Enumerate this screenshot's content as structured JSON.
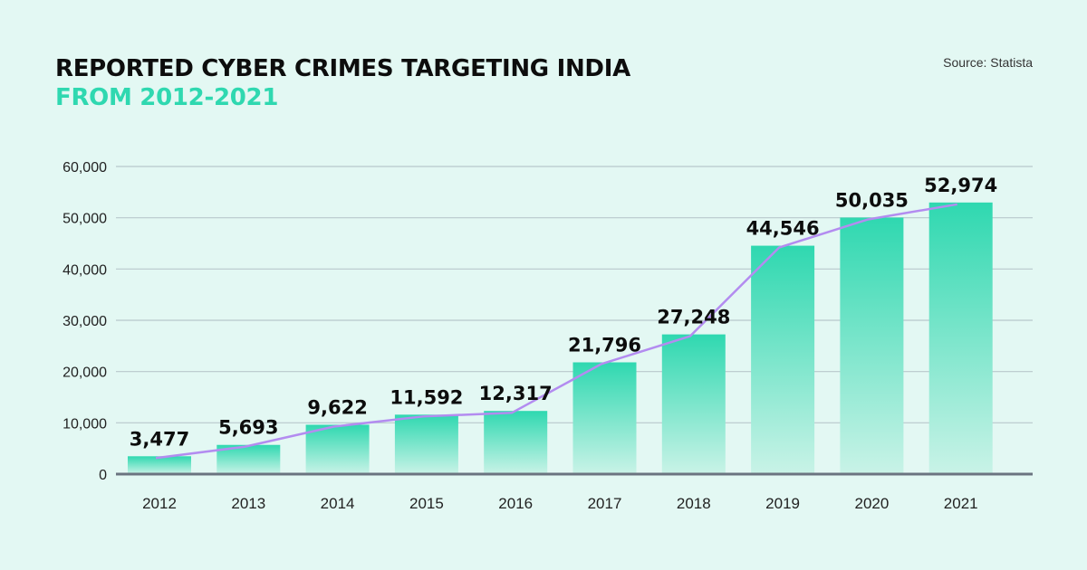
{
  "header": {
    "title_line1": "REPORTED CYBER CRIMES TARGETING INDIA",
    "title_line2": "FROM 2012-2021",
    "source": "Source: Statista"
  },
  "colors": {
    "background": "#e3f8f3",
    "bar_top": "#2fd8b0",
    "bar_bottom": "#c9f3e7",
    "line": "#b38cf0",
    "grid": "#b8c8cc",
    "baseline": "#6b7480",
    "title_accent": "#2fd8b0"
  },
  "chart_data": {
    "type": "bar",
    "title": "REPORTED CYBER CRIMES TARGETING INDIA FROM 2012-2021",
    "xlabel": "",
    "ylabel": "",
    "ylim": [
      0,
      60000
    ],
    "yticks": [
      0,
      10000,
      20000,
      30000,
      40000,
      50000,
      60000
    ],
    "ytick_labels": [
      "0",
      "10,000",
      "20,000",
      "30,000",
      "40,000",
      "50,000",
      "60,000"
    ],
    "categories": [
      "2012",
      "2013",
      "2014",
      "2015",
      "2016",
      "2017",
      "2018",
      "2019",
      "2020",
      "2021"
    ],
    "values": [
      3477,
      5693,
      9622,
      11592,
      12317,
      21796,
      27248,
      44546,
      50035,
      52974
    ],
    "data_labels": [
      "3,477",
      "5,693",
      "9,622",
      "11,592",
      "12,317",
      "21,796",
      "27,248",
      "44,546",
      "50,035",
      "52,974"
    ],
    "overlay": "line",
    "grid": true,
    "legend": "none"
  }
}
